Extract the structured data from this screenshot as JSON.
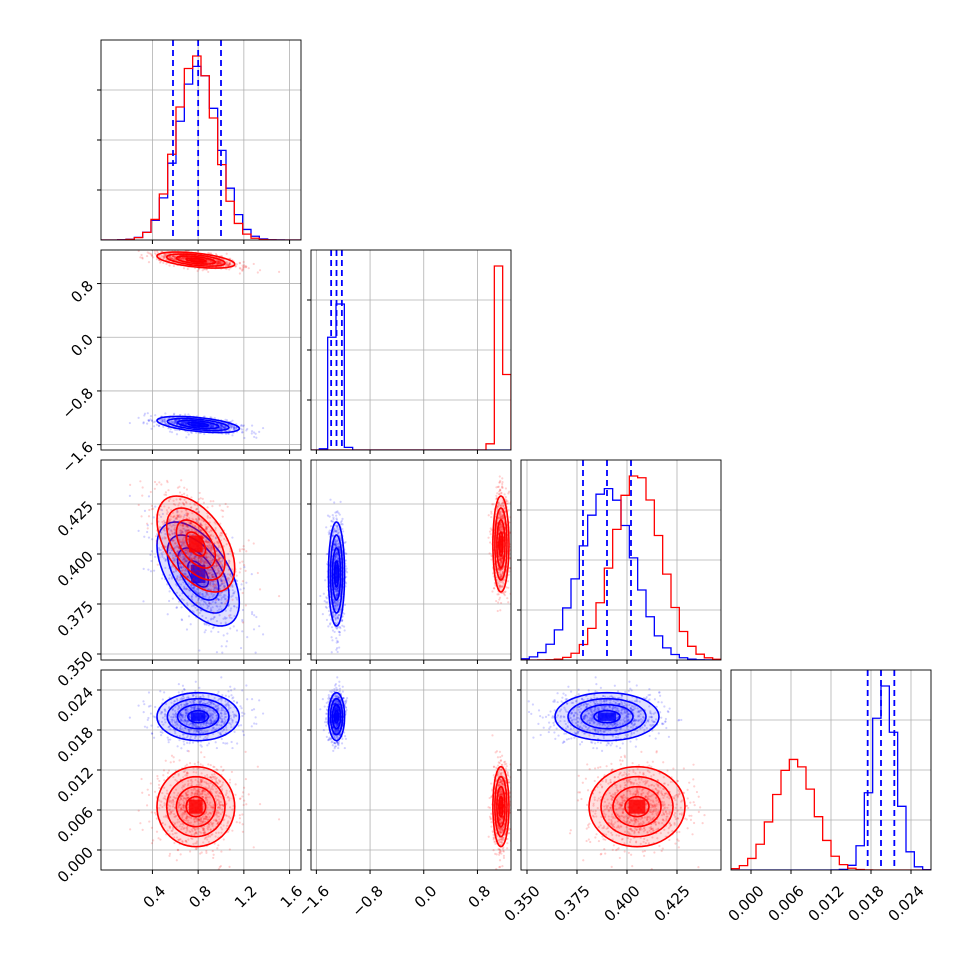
{
  "chart_data": {
    "type": "scatter",
    "grid": true,
    "colors": {
      "series_a": "#0000ff",
      "series_b": "#ff0000",
      "quantile_lines": "#0000ff"
    },
    "series": [
      {
        "color": "#0000ff",
        "means": [
          0.8,
          -1.3,
          0.39,
          0.02
        ],
        "sds": [
          0.18,
          0.06,
          0.013,
          0.0018
        ],
        "corr": {
          "0-1": -0.5,
          "0-2": -0.55,
          "1-2": 0.0
        }
      },
      {
        "color": "#ff0000",
        "means": [
          0.78,
          1.15,
          0.405,
          0.0065
        ],
        "sds": [
          0.17,
          0.06,
          0.012,
          0.003
        ],
        "corr": {
          "0-1": -0.5,
          "0-2": -0.5,
          "1-2": 0.0
        }
      }
    ],
    "quantile_lines": [
      [
        0.58,
        0.8,
        1.0
      ],
      [
        -1.38,
        -1.3,
        -1.22
      ],
      [
        0.378,
        0.39,
        0.402
      ],
      [
        0.0175,
        0.0195,
        0.0215
      ]
    ],
    "panels": [
      {
        "axis": "x0",
        "range": [
          -0.05,
          1.7
        ],
        "ticks": [
          0.4,
          0.8,
          1.2,
          1.6
        ],
        "tick_labels": [
          "0.4",
          "0.8",
          "1.2",
          "1.6"
        ]
      },
      {
        "axis": "x1",
        "range": [
          -1.68,
          1.3
        ],
        "ticks": [
          -1.6,
          -0.8,
          0.0,
          0.8
        ],
        "tick_labels": [
          "−1.6",
          "−0.8",
          "0.0",
          "0.8"
        ]
      },
      {
        "axis": "x2",
        "range": [
          0.347,
          0.447
        ],
        "ticks": [
          0.35,
          0.375,
          0.4,
          0.425
        ],
        "tick_labels": [
          "0.350",
          "0.375",
          "0.400",
          "0.425"
        ]
      },
      {
        "axis": "x3",
        "range": [
          -0.003,
          0.027
        ],
        "ticks": [
          0.0,
          0.006,
          0.012,
          0.018,
          0.024
        ],
        "tick_labels": [
          "0.000",
          "0.006",
          "0.012",
          "0.018",
          "0.024"
        ]
      }
    ]
  }
}
